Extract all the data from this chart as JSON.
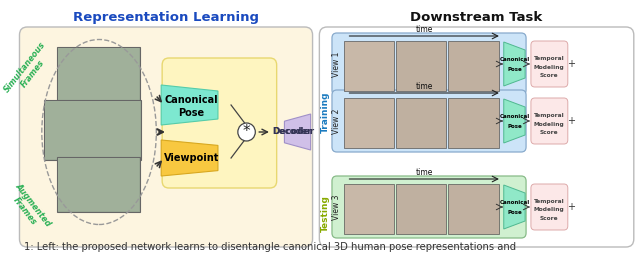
{
  "title_left": "Representation Learning",
  "title_right": "Downstream Task",
  "left_panel_fill": "#fdf5e0",
  "left_panel_border": "#bbbbbb",
  "right_panel_fill": "#ffffff",
  "right_panel_border": "#bbbbbb",
  "yellow_box_fill": "#fef5c0",
  "yellow_box_border": "#e8d870",
  "canonical_pose_color": "#7de8d0",
  "canonical_pose_border": "#55ccaa",
  "viewpoint_color": "#f8c840",
  "viewpoint_border": "#d8a820",
  "decoder_color": "#d0c0e8",
  "decoder_border": "#a090c8",
  "view1_bg": "#cce4f8",
  "view1_border": "#88aacc",
  "view2_bg": "#cce4f8",
  "view2_border": "#88aacc",
  "view3_bg": "#d0f0d0",
  "view3_border": "#88bb88",
  "canonical_right_color": "#90e8c8",
  "canonical_right_border": "#50b890",
  "temporal_box_color": "#fce8e8",
  "temporal_box_border": "#ddaaaa",
  "simultaneous_color": "#2ab055",
  "augmented_color": "#2ab055",
  "training_color": "#1a7abf",
  "testing_color": "#88aa00",
  "arrow_color": "#444444",
  "caption_text": "1: Left: the proposed network learns to disentangle canonical 3D human pose representations and",
  "caption_fontsize": 7.2,
  "title_fontsize": 9.5,
  "fig_bg": "#ffffff"
}
